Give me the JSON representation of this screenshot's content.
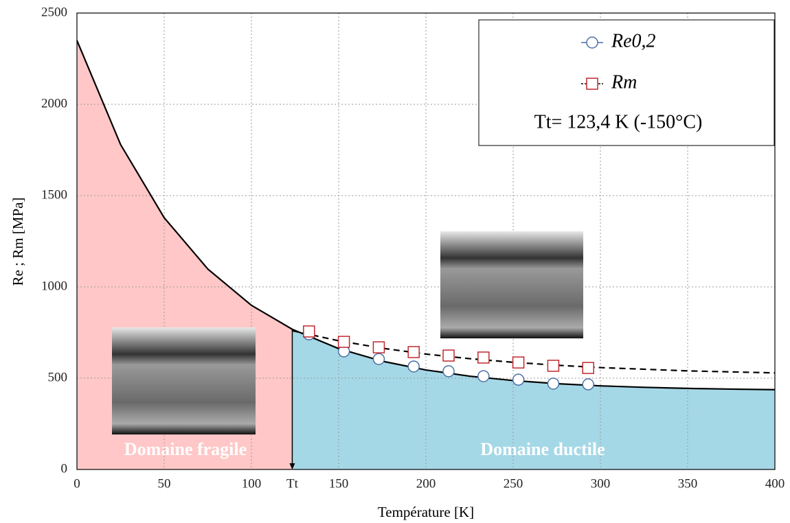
{
  "chart_data": {
    "type": "scatter",
    "xlabel": "Température [K]",
    "ylabel": "Re ; Rm  [MPa]",
    "xlim": [
      0,
      400
    ],
    "ylim": [
      0,
      2500
    ],
    "xticks": [
      0,
      50,
      100,
      {
        "value": 123.4,
        "label": "Tt"
      },
      150,
      200,
      250,
      300,
      350,
      400
    ],
    "yticks": [
      0,
      500,
      1000,
      1500,
      2000,
      2500
    ],
    "grid": true,
    "legend": "upper right",
    "series": [
      {
        "name": "Re0,2",
        "color": "#4a6fa5",
        "marker": "circle",
        "x": [
          133,
          153,
          173,
          193,
          213,
          233,
          253,
          273,
          293
        ],
        "values": [
          740,
          647,
          605,
          564,
          538,
          511,
          492,
          470,
          466
        ]
      },
      {
        "name": "Rm",
        "color": "#c0272d",
        "marker": "square",
        "x": [
          133,
          153,
          173,
          193,
          213,
          233,
          253,
          273,
          293
        ],
        "values": [
          756,
          699,
          669,
          643,
          624,
          613,
          586,
          568,
          556
        ]
      }
    ],
    "curves": [
      {
        "style": "solid",
        "x": [
          0,
          25,
          50,
          75,
          100,
          123.4,
          150,
          175,
          200,
          225,
          250,
          275,
          300,
          325,
          350,
          375,
          400
        ],
        "values": [
          2350,
          1780,
          1379,
          1098,
          899,
          768,
          662,
          593,
          545,
          511,
          487,
          470,
          458,
          450,
          444,
          440,
          437
        ]
      },
      {
        "style": "dashed",
        "x": [
          123.4,
          150,
          175,
          200,
          225,
          250,
          275,
          300,
          350,
          400
        ],
        "values": [
          760,
          705,
          664,
          632,
          607,
          587,
          571,
          558,
          540,
          529
        ]
      }
    ],
    "regions": [
      {
        "label": "Domaine fragile",
        "color": "#ffc7c7"
      },
      {
        "label": "Domaine ductile",
        "color": "#a5d8e6"
      }
    ],
    "annotation": "Tt= 123,4 K (-150°C)"
  }
}
